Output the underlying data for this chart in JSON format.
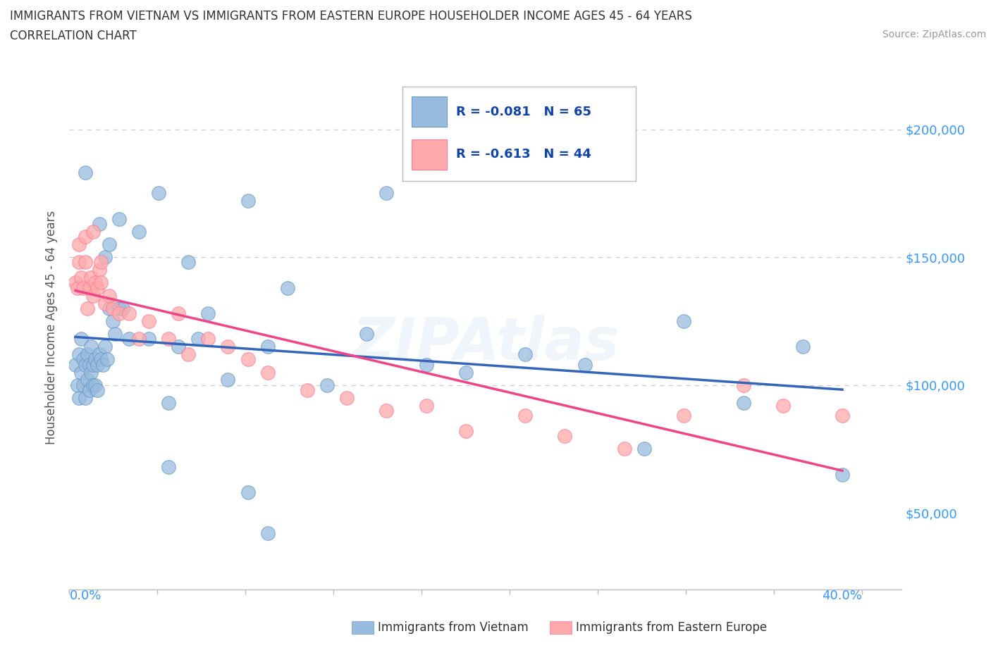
{
  "title_line1": "IMMIGRANTS FROM VIETNAM VS IMMIGRANTS FROM EASTERN EUROPE HOUSEHOLDER INCOME AGES 45 - 64 YEARS",
  "title_line2": "CORRELATION CHART",
  "source_text": "Source: ZipAtlas.com",
  "ylabel": "Householder Income Ages 45 - 64 years",
  "xlim": [
    0.0,
    0.42
  ],
  "ylim": [
    20000,
    225000
  ],
  "ytick_values": [
    50000,
    100000,
    150000,
    200000
  ],
  "ytick_labels": [
    "$50,000",
    "$100,000",
    "$150,000",
    "$200,000"
  ],
  "watermark": "ZIPAtlas",
  "legend_r1": "-0.081",
  "legend_n1": "65",
  "legend_r2": "-0.613",
  "legend_n2": "44",
  "color_vietnam": "#99BBDD",
  "color_eastern": "#FFAAAA",
  "color_legend_text": "#1144AA",
  "trendline_vietnam_color": "#3366BB",
  "trendline_eastern_color": "#EE4488",
  "background_color": "#FFFFFF",
  "gridline_color": "#CCCCCC",
  "vietnam_x": [
    0.003,
    0.004,
    0.005,
    0.005,
    0.006,
    0.006,
    0.007,
    0.007,
    0.008,
    0.008,
    0.009,
    0.009,
    0.01,
    0.01,
    0.011,
    0.011,
    0.012,
    0.012,
    0.013,
    0.013,
    0.014,
    0.014,
    0.015,
    0.016,
    0.017,
    0.018,
    0.019,
    0.02,
    0.022,
    0.023,
    0.025,
    0.027,
    0.03,
    0.035,
    0.04,
    0.045,
    0.05,
    0.055,
    0.06,
    0.065,
    0.07,
    0.08,
    0.09,
    0.1,
    0.11,
    0.13,
    0.15,
    0.18,
    0.2,
    0.23,
    0.26,
    0.29,
    0.31,
    0.34,
    0.37,
    0.39,
    0.008,
    0.015,
    0.018,
    0.02,
    0.025,
    0.05,
    0.09,
    0.1,
    0.16
  ],
  "vietnam_y": [
    108000,
    100000,
    112000,
    95000,
    105000,
    118000,
    110000,
    100000,
    108000,
    95000,
    112000,
    102000,
    108000,
    98000,
    105000,
    115000,
    108000,
    100000,
    110000,
    100000,
    108000,
    98000,
    112000,
    110000,
    108000,
    115000,
    110000,
    130000,
    125000,
    120000,
    130000,
    130000,
    118000,
    160000,
    118000,
    175000,
    93000,
    115000,
    148000,
    118000,
    128000,
    102000,
    172000,
    115000,
    138000,
    100000,
    120000,
    108000,
    105000,
    112000,
    108000,
    75000,
    125000,
    93000,
    115000,
    65000,
    183000,
    163000,
    150000,
    155000,
    165000,
    68000,
    58000,
    42000,
    175000
  ],
  "eastern_x": [
    0.003,
    0.004,
    0.005,
    0.006,
    0.007,
    0.008,
    0.009,
    0.01,
    0.011,
    0.012,
    0.013,
    0.014,
    0.015,
    0.016,
    0.018,
    0.02,
    0.022,
    0.025,
    0.03,
    0.035,
    0.04,
    0.05,
    0.055,
    0.06,
    0.07,
    0.08,
    0.09,
    0.1,
    0.12,
    0.14,
    0.16,
    0.18,
    0.2,
    0.23,
    0.25,
    0.28,
    0.31,
    0.34,
    0.36,
    0.39,
    0.005,
    0.008,
    0.012,
    0.016
  ],
  "eastern_y": [
    140000,
    138000,
    148000,
    142000,
    138000,
    148000,
    130000,
    138000,
    142000,
    135000,
    140000,
    138000,
    145000,
    140000,
    132000,
    135000,
    130000,
    128000,
    128000,
    118000,
    125000,
    118000,
    128000,
    112000,
    118000,
    115000,
    110000,
    105000,
    98000,
    95000,
    90000,
    92000,
    82000,
    88000,
    80000,
    75000,
    88000,
    100000,
    92000,
    88000,
    155000,
    158000,
    160000,
    148000
  ]
}
